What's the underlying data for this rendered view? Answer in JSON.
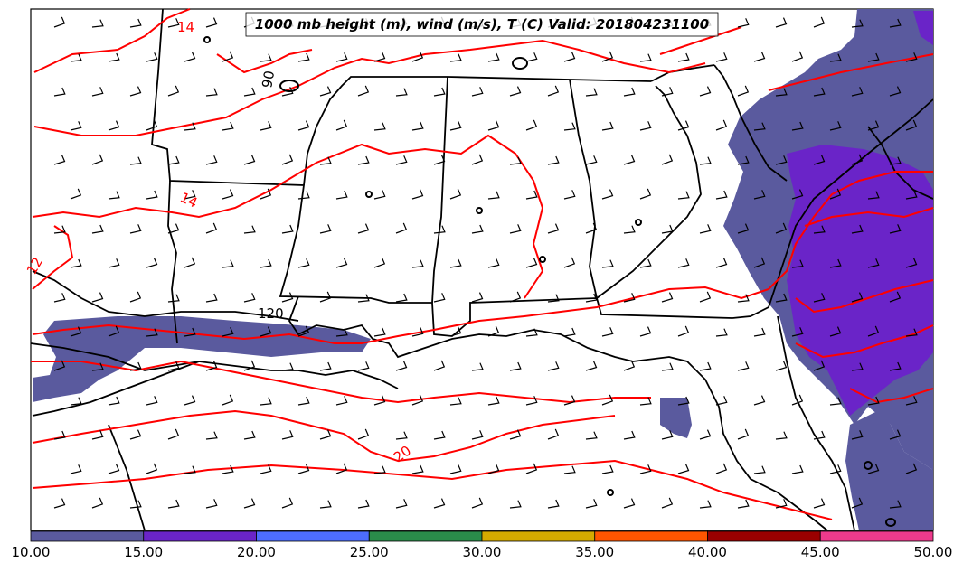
{
  "title": "1000 mb height (m), wind (m/s), T (C) Valid: 201804231100",
  "contour_labels": {
    "temp": [
      "14",
      "14",
      "12",
      "20"
    ],
    "height": [
      "90",
      "120"
    ]
  },
  "colorbar": {
    "ticks": [
      "10.00",
      "15.00",
      "20.00",
      "25.00",
      "30.00",
      "35.00",
      "40.00",
      "45.00",
      "50.00"
    ],
    "colors": [
      "#5a5a9e",
      "#6a24c8",
      "#4d6dff",
      "#2a8c4a",
      "#d4aa00",
      "#ff5500",
      "#9a0000",
      "#ee3a8c"
    ]
  },
  "colors": {
    "temperature_contour": "#ff0000",
    "height_contour": "#000000",
    "wind_shade_low": "#5a5a9e",
    "wind_shade_mid": "#6a24c8"
  }
}
